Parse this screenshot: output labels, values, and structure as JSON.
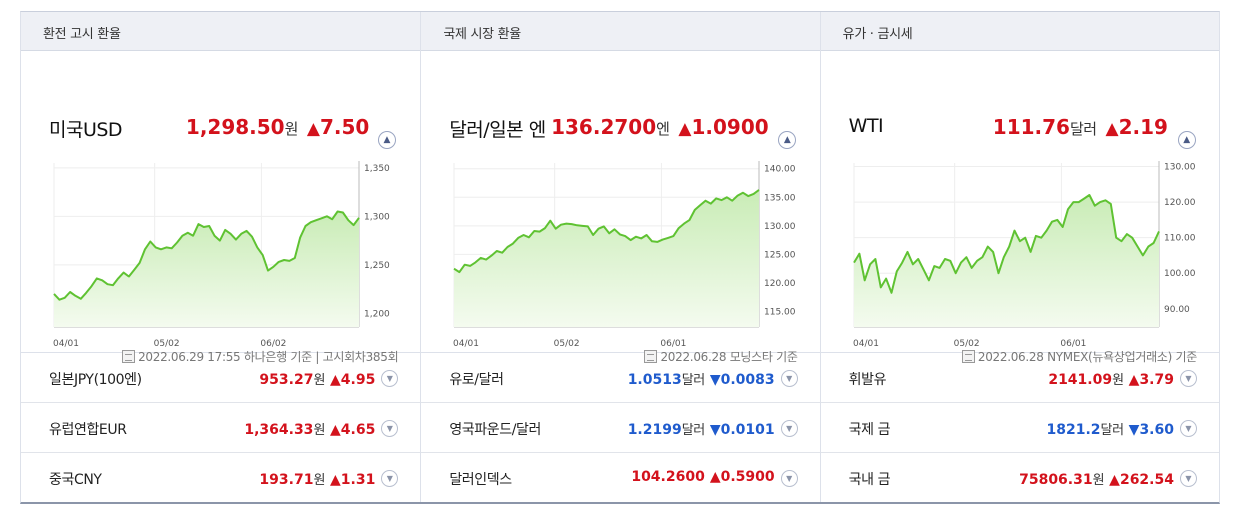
{
  "columns": [
    {
      "header": "환전 고시 환율",
      "main": {
        "title": "미국USD",
        "price": "1,298.50",
        "unit": "원",
        "change_sign": "▲",
        "change": "7.50",
        "direction": "up",
        "expand_icon": "chevron-up-icon",
        "source": "2022.06.29 17:55 하나은행 기준 | 고시회차385회"
      },
      "rows": [
        {
          "name": "일본JPY(100엔)",
          "value": "953.27",
          "unit": "원",
          "sign": "▲",
          "change": "4.95",
          "direction": "up"
        },
        {
          "name": "유럽연합EUR",
          "value": "1,364.33",
          "unit": "원",
          "sign": "▲",
          "change": "4.65",
          "direction": "up"
        },
        {
          "name": "중국CNY",
          "value": "193.71",
          "unit": "원",
          "sign": "▲",
          "change": "1.31",
          "direction": "up"
        }
      ]
    },
    {
      "header": "국제 시장 환율",
      "main": {
        "title": "달러/일본 엔",
        "price": "136.2700",
        "unit": "엔",
        "change_sign": "▲",
        "change": "1.0900",
        "direction": "up",
        "expand_icon": "chevron-up-icon",
        "source": "2022.06.28 모닝스타 기준"
      },
      "rows": [
        {
          "name": "유로/달러",
          "value": "1.0513",
          "unit": "달러",
          "sign": "▼",
          "change": "0.0083",
          "direction": "down"
        },
        {
          "name": "영국파운드/달러",
          "value": "1.2199",
          "unit": "달러",
          "sign": "▼",
          "change": "0.0101",
          "direction": "down"
        },
        {
          "name": "달러인덱스",
          "value": "104.2600",
          "unit": "",
          "sign": "▲",
          "change": "0.5900",
          "direction": "up"
        }
      ]
    },
    {
      "header": "유가 · 금시세",
      "main": {
        "title": "WTI",
        "price": "111.76",
        "unit": "달러",
        "change_sign": "▲",
        "change": "2.19",
        "direction": "up",
        "expand_icon": "chevron-up-icon",
        "source": "2022.06.28 NYMEX(뉴욕상업거래소) 기준"
      },
      "rows": [
        {
          "name": "휘발유",
          "value": "2141.09",
          "unit": "원",
          "sign": "▲",
          "change": "3.79",
          "direction": "up"
        },
        {
          "name": "국제 금",
          "value": "1821.2",
          "unit": "달러",
          "sign": "▼",
          "change": "3.60",
          "direction": "down"
        },
        {
          "name": "국내 금",
          "value": "75806.31",
          "unit": "원",
          "sign": "▲",
          "change": "262.54",
          "direction": "up"
        }
      ]
    }
  ],
  "colors": {
    "up": "#d3121c",
    "down": "#1f5bcd",
    "line": "#5fc232",
    "fill_top": "#c9ecb6",
    "fill_bottom": "#f4fbef"
  },
  "chart_data": [
    {
      "type": "area",
      "x_ticks": [
        "04/01",
        "05/02",
        "06/02"
      ],
      "y_ticks": [
        "1,350",
        "1,300",
        "1,250",
        "1,200"
      ],
      "ylim": [
        1190,
        1355
      ],
      "values": [
        1220,
        1214,
        1216,
        1222,
        1218,
        1215,
        1221,
        1228,
        1236,
        1234,
        1230,
        1229,
        1236,
        1242,
        1238,
        1245,
        1252,
        1266,
        1274,
        1268,
        1266,
        1268,
        1267,
        1273,
        1280,
        1283,
        1280,
        1292,
        1289,
        1290,
        1280,
        1275,
        1286,
        1282,
        1276,
        1282,
        1285,
        1279,
        1268,
        1260,
        1244,
        1248,
        1253,
        1255,
        1254,
        1257,
        1278,
        1290,
        1294,
        1296,
        1298,
        1300,
        1297,
        1305,
        1304,
        1296,
        1291,
        1298.5
      ]
    },
    {
      "type": "area",
      "x_ticks": [
        "04/01",
        "05/02",
        "06/01"
      ],
      "y_ticks": [
        "140.00",
        "135.00",
        "130.00",
        "125.00",
        "120.00",
        "115.00"
      ],
      "ylim": [
        113,
        141
      ],
      "values": [
        122.5,
        121.9,
        123.2,
        123.0,
        123.6,
        124.4,
        124.1,
        124.8,
        125.6,
        125.3,
        126.3,
        126.9,
        127.9,
        128.4,
        128.0,
        129.1,
        129.0,
        129.6,
        130.9,
        129.5,
        130.2,
        130.4,
        130.3,
        130.1,
        130.0,
        129.9,
        128.4,
        129.5,
        129.9,
        128.7,
        129.4,
        128.5,
        128.2,
        127.5,
        128.1,
        127.8,
        128.4,
        127.3,
        127.2,
        127.6,
        127.9,
        128.2,
        129.6,
        130.4,
        131.0,
        132.8,
        133.6,
        134.4,
        133.9,
        134.8,
        134.5,
        135.0,
        134.4,
        135.3,
        135.8,
        135.2,
        135.6,
        136.3
      ]
    },
    {
      "type": "area",
      "x_ticks": [
        "04/01",
        "05/02",
        "06/01"
      ],
      "y_ticks": [
        "130.00",
        "120.00",
        "110.00",
        "100.00",
        "90.00"
      ],
      "ylim": [
        86,
        131
      ],
      "values": [
        103.0,
        105.5,
        98.0,
        102.5,
        104.0,
        96.0,
        98.5,
        94.5,
        100.5,
        103.0,
        106.0,
        102.5,
        104.0,
        101.0,
        98.0,
        102.0,
        101.5,
        104.0,
        103.5,
        100.0,
        103.0,
        104.5,
        101.5,
        103.5,
        104.5,
        107.5,
        106.0,
        100.0,
        104.5,
        107.5,
        112.0,
        109.0,
        110.0,
        106.0,
        110.5,
        110.0,
        112.0,
        114.5,
        115.0,
        113.0,
        118.0,
        120.0,
        120.0,
        121.0,
        122.0,
        119.0,
        120.0,
        120.5,
        119.5,
        110.0,
        109.0,
        111.0,
        110.0,
        107.5,
        105.0,
        107.5,
        108.5,
        111.76
      ]
    }
  ]
}
